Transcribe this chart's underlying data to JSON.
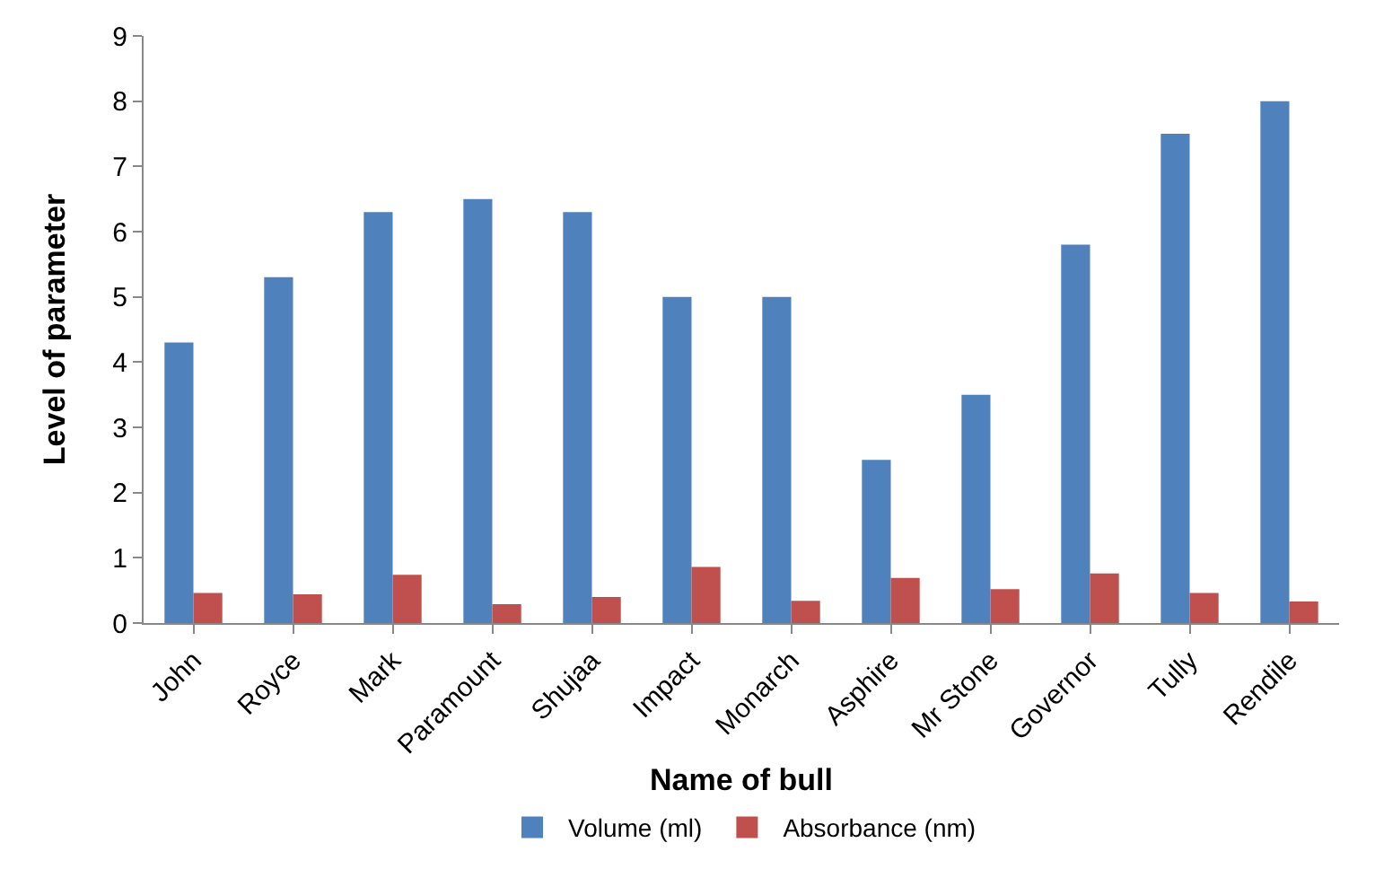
{
  "chart_data": {
    "type": "bar",
    "xlabel": "Name of bull",
    "ylabel": "Level of parameter",
    "categories": [
      "John",
      "Royce",
      "Mark",
      "Paramount",
      "Shujaa",
      "Impact",
      "Monarch",
      "Asphire",
      "Mr Stone",
      "Governor",
      "Tully",
      "Rendile"
    ],
    "series": [
      {
        "name": "Volume (ml)",
        "color": "#4f81bd",
        "values": [
          4.3,
          5.3,
          6.3,
          6.5,
          6.3,
          5.0,
          5.0,
          2.5,
          3.5,
          5.8,
          7.5,
          8.0
        ]
      },
      {
        "name": "Absorbance (nm)",
        "color": "#c0504d",
        "values": [
          0.46,
          0.44,
          0.74,
          0.29,
          0.4,
          0.86,
          0.34,
          0.69,
          0.52,
          0.76,
          0.46,
          0.33
        ]
      }
    ],
    "ylim": [
      0,
      9
    ],
    "yticks": [
      0,
      1,
      2,
      3,
      4,
      5,
      6,
      7,
      8,
      9
    ],
    "grid": false,
    "legend": "bottom"
  }
}
